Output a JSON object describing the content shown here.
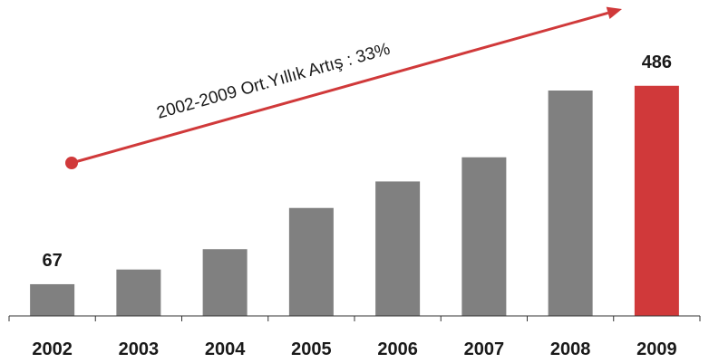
{
  "chart_data": {
    "type": "bar",
    "categories": [
      "2002",
      "2003",
      "2004",
      "2005",
      "2006",
      "2007",
      "2008",
      "2009"
    ],
    "values": [
      67,
      98,
      141,
      228,
      284,
      335,
      476,
      486
    ],
    "data_labels": {
      "2002": "67",
      "2009": "486"
    },
    "annotation": "2002-2009 Ort.Yıllık Artış : 33%",
    "ylim": [
      0,
      560
    ],
    "grid": false,
    "legend": "none",
    "colors": {
      "bar": "#808080",
      "highlight": "#d0393a",
      "arrow": "#d0393a",
      "axis": "#333333"
    }
  }
}
